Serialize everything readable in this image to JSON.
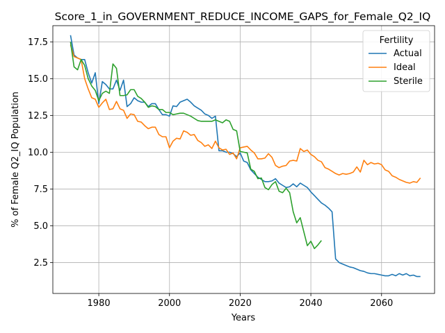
{
  "chart_data": {
    "type": "line",
    "title": "Score_1_in_GOVERNMENT_REDUCE_INCOME_GAPS_for_Female_Q2_IQ",
    "xlabel": "Years",
    "ylabel": "% of Female Q2_IQ Population",
    "xlim": [
      1967,
      2075
    ],
    "ylim": [
      0.4,
      18.6
    ],
    "xticks": [
      1980,
      2000,
      2020,
      2040,
      2060
    ],
    "xtick_labels": [
      "1980",
      "2000",
      "2020",
      "2040",
      "2060"
    ],
    "yticks": [
      2.5,
      5.0,
      7.5,
      10.0,
      12.5,
      15.0,
      17.5
    ],
    "ytick_labels": [
      "2.5",
      "5.0",
      "7.5",
      "10.0",
      "12.5",
      "15.0",
      "17.5"
    ],
    "grid": true,
    "legend": {
      "title": "Fertility",
      "placement": "top-right"
    },
    "series": [
      {
        "name": "Actual",
        "color": "#1f77b4",
        "points": [
          [
            1972,
            17.95
          ],
          [
            1973,
            16.6
          ],
          [
            1974,
            16.4
          ],
          [
            1975,
            16.3
          ],
          [
            1976,
            16.3
          ],
          [
            1977,
            15.4
          ],
          [
            1978,
            14.7
          ],
          [
            1979,
            15.4
          ],
          [
            1980,
            13.3
          ],
          [
            1981,
            14.8
          ],
          [
            1982,
            14.6
          ],
          [
            1983,
            14.3
          ],
          [
            1984,
            14.3
          ],
          [
            1985,
            14.9
          ],
          [
            1986,
            14.2
          ],
          [
            1987,
            14.9
          ],
          [
            1988,
            13.1
          ],
          [
            1989,
            13.3
          ],
          [
            1990,
            13.7
          ],
          [
            1991,
            13.5
          ],
          [
            1992,
            13.4
          ],
          [
            1993,
            13.4
          ],
          [
            1994,
            13.1
          ],
          [
            1995,
            13.3
          ],
          [
            1996,
            13.3
          ],
          [
            1997,
            12.9
          ],
          [
            1998,
            12.55
          ],
          [
            1999,
            12.55
          ],
          [
            2000,
            12.45
          ],
          [
            2001,
            13.15
          ],
          [
            2002,
            13.1
          ],
          [
            2003,
            13.4
          ],
          [
            2004,
            13.5
          ],
          [
            2005,
            13.6
          ],
          [
            2006,
            13.4
          ],
          [
            2007,
            13.15
          ],
          [
            2008,
            13.0
          ],
          [
            2009,
            12.85
          ],
          [
            2010,
            12.6
          ],
          [
            2011,
            12.5
          ],
          [
            2012,
            12.3
          ],
          [
            2013,
            12.45
          ],
          [
            2014,
            10.1
          ],
          [
            2015,
            10.1
          ],
          [
            2016,
            10.0
          ],
          [
            2017,
            10.0
          ],
          [
            2018,
            9.9
          ],
          [
            2019,
            9.7
          ],
          [
            2020,
            9.95
          ],
          [
            2021,
            9.4
          ],
          [
            2022,
            9.3
          ],
          [
            2023,
            8.8
          ],
          [
            2024,
            8.55
          ],
          [
            2025,
            8.3
          ],
          [
            2026,
            8.15
          ],
          [
            2027,
            8.0
          ],
          [
            2028,
            8.0
          ],
          [
            2029,
            8.05
          ],
          [
            2030,
            8.2
          ],
          [
            2031,
            7.9
          ],
          [
            2032,
            7.75
          ],
          [
            2033,
            7.6
          ],
          [
            2034,
            7.65
          ],
          [
            2035,
            7.85
          ],
          [
            2036,
            7.65
          ],
          [
            2037,
            7.9
          ],
          [
            2038,
            7.75
          ],
          [
            2039,
            7.6
          ],
          [
            2040,
            7.3
          ],
          [
            2041,
            7.05
          ],
          [
            2042,
            6.8
          ],
          [
            2043,
            6.55
          ],
          [
            2044,
            6.4
          ],
          [
            2045,
            6.2
          ],
          [
            2046,
            5.95
          ],
          [
            2047,
            2.75
          ],
          [
            2048,
            2.5
          ],
          [
            2049,
            2.4
          ],
          [
            2050,
            2.3
          ],
          [
            2051,
            2.2
          ],
          [
            2052,
            2.15
          ],
          [
            2053,
            2.05
          ],
          [
            2054,
            1.95
          ],
          [
            2055,
            1.9
          ],
          [
            2056,
            1.8
          ],
          [
            2057,
            1.75
          ],
          [
            2058,
            1.75
          ],
          [
            2059,
            1.7
          ],
          [
            2060,
            1.65
          ],
          [
            2061,
            1.6
          ],
          [
            2062,
            1.6
          ],
          [
            2063,
            1.7
          ],
          [
            2064,
            1.6
          ],
          [
            2065,
            1.75
          ],
          [
            2066,
            1.65
          ],
          [
            2067,
            1.75
          ],
          [
            2068,
            1.6
          ],
          [
            2069,
            1.65
          ],
          [
            2070,
            1.55
          ],
          [
            2071,
            1.55
          ]
        ]
      },
      {
        "name": "Ideal",
        "color": "#ff7f0e",
        "points": [
          [
            1972,
            17.3
          ],
          [
            1973,
            16.5
          ],
          [
            1974,
            16.4
          ],
          [
            1975,
            16.3
          ],
          [
            1976,
            15.0
          ],
          [
            1977,
            14.3
          ],
          [
            1978,
            13.7
          ],
          [
            1979,
            13.6
          ],
          [
            1980,
            13.05
          ],
          [
            1981,
            13.35
          ],
          [
            1982,
            13.6
          ],
          [
            1983,
            12.9
          ],
          [
            1984,
            12.95
          ],
          [
            1985,
            13.45
          ],
          [
            1986,
            12.95
          ],
          [
            1987,
            12.85
          ],
          [
            1988,
            12.3
          ],
          [
            1989,
            12.6
          ],
          [
            1990,
            12.55
          ],
          [
            1991,
            12.1
          ],
          [
            1992,
            12.05
          ],
          [
            1993,
            11.8
          ],
          [
            1994,
            11.6
          ],
          [
            1995,
            11.7
          ],
          [
            1996,
            11.7
          ],
          [
            1997,
            11.2
          ],
          [
            1998,
            11.05
          ],
          [
            1999,
            11.05
          ],
          [
            2000,
            10.3
          ],
          [
            2001,
            10.75
          ],
          [
            2002,
            10.95
          ],
          [
            2003,
            10.9
          ],
          [
            2004,
            11.45
          ],
          [
            2005,
            11.35
          ],
          [
            2006,
            11.15
          ],
          [
            2007,
            11.2
          ],
          [
            2008,
            10.8
          ],
          [
            2009,
            10.65
          ],
          [
            2010,
            10.4
          ],
          [
            2011,
            10.5
          ],
          [
            2012,
            10.25
          ],
          [
            2013,
            10.75
          ],
          [
            2014,
            10.3
          ],
          [
            2015,
            10.15
          ],
          [
            2016,
            10.2
          ],
          [
            2017,
            9.85
          ],
          [
            2018,
            9.95
          ],
          [
            2019,
            9.55
          ],
          [
            2020,
            10.3
          ],
          [
            2021,
            10.35
          ],
          [
            2022,
            10.4
          ],
          [
            2023,
            10.15
          ],
          [
            2024,
            9.95
          ],
          [
            2025,
            9.55
          ],
          [
            2026,
            9.55
          ],
          [
            2027,
            9.6
          ],
          [
            2028,
            9.9
          ],
          [
            2029,
            9.65
          ],
          [
            2030,
            9.1
          ],
          [
            2031,
            8.95
          ],
          [
            2032,
            9.05
          ],
          [
            2033,
            9.1
          ],
          [
            2034,
            9.4
          ],
          [
            2035,
            9.45
          ],
          [
            2036,
            9.4
          ],
          [
            2037,
            10.25
          ],
          [
            2038,
            10.05
          ],
          [
            2039,
            10.15
          ],
          [
            2040,
            9.85
          ],
          [
            2041,
            9.7
          ],
          [
            2042,
            9.45
          ],
          [
            2043,
            9.35
          ],
          [
            2044,
            8.95
          ],
          [
            2045,
            8.85
          ],
          [
            2046,
            8.7
          ],
          [
            2047,
            8.55
          ],
          [
            2048,
            8.45
          ],
          [
            2049,
            8.55
          ],
          [
            2050,
            8.5
          ],
          [
            2051,
            8.55
          ],
          [
            2052,
            8.65
          ],
          [
            2053,
            9.0
          ],
          [
            2054,
            8.65
          ],
          [
            2055,
            9.45
          ],
          [
            2056,
            9.15
          ],
          [
            2057,
            9.3
          ],
          [
            2058,
            9.2
          ],
          [
            2059,
            9.25
          ],
          [
            2060,
            9.15
          ],
          [
            2061,
            8.8
          ],
          [
            2062,
            8.7
          ],
          [
            2063,
            8.4
          ],
          [
            2064,
            8.3
          ],
          [
            2065,
            8.15
          ],
          [
            2066,
            8.05
          ],
          [
            2067,
            7.95
          ],
          [
            2068,
            7.9
          ],
          [
            2069,
            8.0
          ],
          [
            2070,
            7.95
          ],
          [
            2071,
            8.25
          ]
        ]
      },
      {
        "name": "Sterile",
        "color": "#2ca02c",
        "points": [
          [
            1972,
            17.5
          ],
          [
            1973,
            15.8
          ],
          [
            1974,
            15.6
          ],
          [
            1975,
            16.3
          ],
          [
            1976,
            15.9
          ],
          [
            1977,
            15.0
          ],
          [
            1978,
            14.5
          ],
          [
            1979,
            14.2
          ],
          [
            1980,
            13.5
          ],
          [
            1981,
            14.0
          ],
          [
            1982,
            14.15
          ],
          [
            1983,
            14.0
          ],
          [
            1984,
            16.0
          ],
          [
            1985,
            15.7
          ],
          [
            1986,
            13.85
          ],
          [
            1987,
            13.85
          ],
          [
            1988,
            13.9
          ],
          [
            1989,
            14.25
          ],
          [
            1990,
            14.25
          ],
          [
            1991,
            13.8
          ],
          [
            1992,
            13.65
          ],
          [
            1993,
            13.4
          ],
          [
            1994,
            13.05
          ],
          [
            1995,
            13.15
          ],
          [
            1996,
            13.1
          ],
          [
            1997,
            12.9
          ],
          [
            1998,
            12.9
          ],
          [
            1999,
            12.7
          ],
          [
            2000,
            12.7
          ],
          [
            2001,
            12.55
          ],
          [
            2002,
            12.6
          ],
          [
            2003,
            12.65
          ],
          [
            2004,
            12.65
          ],
          [
            2005,
            12.55
          ],
          [
            2006,
            12.45
          ],
          [
            2007,
            12.3
          ],
          [
            2008,
            12.15
          ],
          [
            2009,
            12.1
          ],
          [
            2010,
            12.1
          ],
          [
            2011,
            12.1
          ],
          [
            2012,
            12.1
          ],
          [
            2013,
            12.2
          ],
          [
            2014,
            12.1
          ],
          [
            2015,
            12.0
          ],
          [
            2016,
            12.2
          ],
          [
            2017,
            12.1
          ],
          [
            2018,
            11.55
          ],
          [
            2019,
            11.45
          ],
          [
            2020,
            10.05
          ],
          [
            2021,
            10.0
          ],
          [
            2022,
            9.95
          ],
          [
            2023,
            8.85
          ],
          [
            2024,
            8.7
          ],
          [
            2025,
            8.2
          ],
          [
            2026,
            8.25
          ],
          [
            2027,
            7.6
          ],
          [
            2028,
            7.45
          ],
          [
            2029,
            7.8
          ],
          [
            2030,
            8.0
          ],
          [
            2031,
            7.35
          ],
          [
            2032,
            7.25
          ],
          [
            2033,
            7.55
          ],
          [
            2034,
            7.25
          ],
          [
            2035,
            5.95
          ],
          [
            2036,
            5.2
          ],
          [
            2037,
            5.55
          ],
          [
            2038,
            4.6
          ],
          [
            2039,
            3.65
          ],
          [
            2040,
            3.95
          ],
          [
            2041,
            3.45
          ],
          [
            2042,
            3.7
          ],
          [
            2043,
            4.0
          ]
        ]
      }
    ]
  }
}
